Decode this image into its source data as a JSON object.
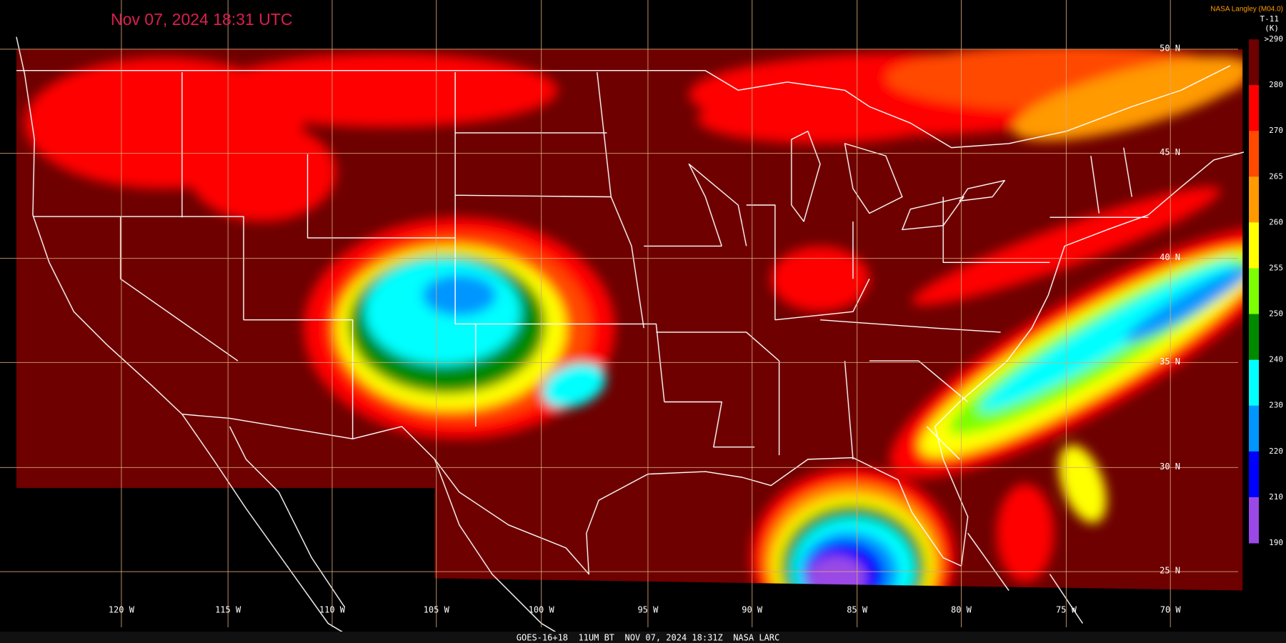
{
  "header": {
    "title": "Nov 07, 2024 18:31 UTC",
    "credit": "NASA Langley (M04.0)"
  },
  "colorbar": {
    "title": "T-11",
    "units": "(K)",
    "labels": [
      ">290",
      "280",
      "270",
      "265",
      "260",
      "255",
      "250",
      "240",
      "230",
      "220",
      "210",
      "190"
    ],
    "colors": [
      "#6e0000",
      "#ff0000",
      "#ff4a00",
      "#ff9a00",
      "#ffff00",
      "#7cff00",
      "#008a00",
      "#00ffff",
      "#0096ff",
      "#0000ff",
      "#9a48e6"
    ]
  },
  "grid": {
    "latitudes": [
      "50 N",
      "45 N",
      "40 N",
      "35 N",
      "30 N",
      "25 N"
    ],
    "longitudes": [
      "120 W",
      "115 W",
      "110 W",
      "105 W",
      "100 W",
      "95 W",
      "90 W",
      "85 W",
      "80 W",
      "75 W",
      "70 W"
    ]
  },
  "footer": {
    "caption": "GOES-16+18  11UM BT  NOV 07, 2024 18:31Z  NASA LARC"
  }
}
